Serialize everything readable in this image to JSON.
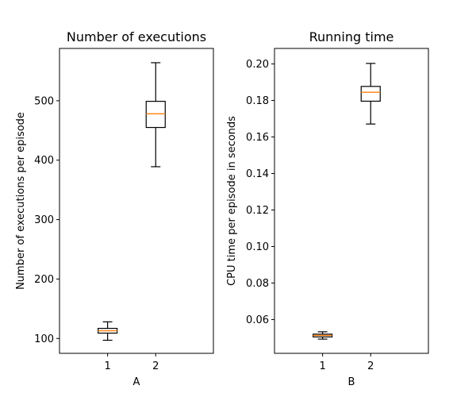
{
  "chart_data": [
    {
      "type": "boxplot",
      "title": "Number of executions",
      "xlabel": "A",
      "ylabel": "Number of executions per episode",
      "categories": [
        "1",
        "2"
      ],
      "ylim": [
        75,
        588
      ],
      "xlim": [
        0,
        3.2
      ],
      "yticks": [
        100,
        200,
        300,
        400,
        500
      ],
      "grid": false,
      "median_color": "#ff7f0e",
      "boxes": [
        {
          "category": "1",
          "whisker_low": 97,
          "q1": 109,
          "median": 113,
          "q3": 117,
          "whisker_high": 128
        },
        {
          "category": "2",
          "whisker_low": 389,
          "q1": 455,
          "median": 478,
          "q3": 499,
          "whisker_high": 564
        }
      ]
    },
    {
      "type": "boxplot",
      "title": "Running time",
      "xlabel": "B",
      "ylabel": "CPU time per episode in seconds",
      "categories": [
        "1",
        "2"
      ],
      "ylim": [
        0.0415,
        0.2085
      ],
      "xlim": [
        0,
        3.2
      ],
      "yticks": [
        0.06,
        0.08,
        0.1,
        0.12,
        0.14,
        0.16,
        0.18,
        0.2
      ],
      "ytick_format": 2,
      "grid": false,
      "median_color": "#ff7f0e",
      "boxes": [
        {
          "category": "1",
          "whisker_low": 0.0493,
          "q1": 0.0505,
          "median": 0.0513,
          "q3": 0.052,
          "whisker_high": 0.0533
        },
        {
          "category": "2",
          "whisker_low": 0.1671,
          "q1": 0.1796,
          "median": 0.1845,
          "q3": 0.1877,
          "whisker_high": 0.2003
        }
      ]
    }
  ]
}
